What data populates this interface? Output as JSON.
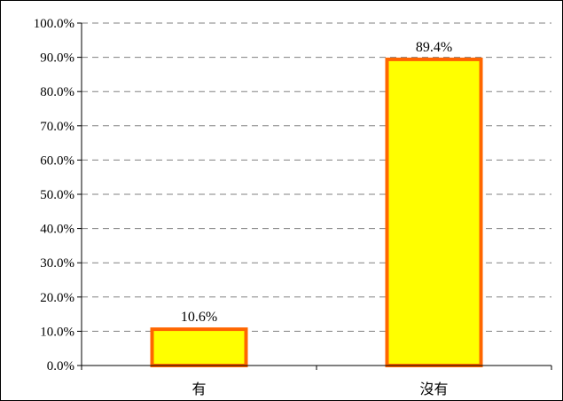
{
  "chart_data": {
    "type": "bar",
    "categories": [
      "有",
      "沒有"
    ],
    "values": [
      10.6,
      89.4
    ],
    "data_labels": [
      "10.6%",
      "89.4%"
    ],
    "ylim": [
      0,
      100
    ],
    "yticks": [
      0,
      10,
      20,
      30,
      40,
      50,
      60,
      70,
      80,
      90,
      100
    ],
    "ytick_labels": [
      "0.0%",
      "10.0%",
      "20.0%",
      "30.0%",
      "40.0%",
      "50.0%",
      "60.0%",
      "70.0%",
      "80.0%",
      "90.0%",
      "100.0%"
    ],
    "grid": "horizontal-dashed",
    "legend": "none",
    "colors": {
      "bar_fill": "#ffff00",
      "bar_edge": "#ff6600",
      "grid": "#808080",
      "axis": "#000000"
    }
  }
}
